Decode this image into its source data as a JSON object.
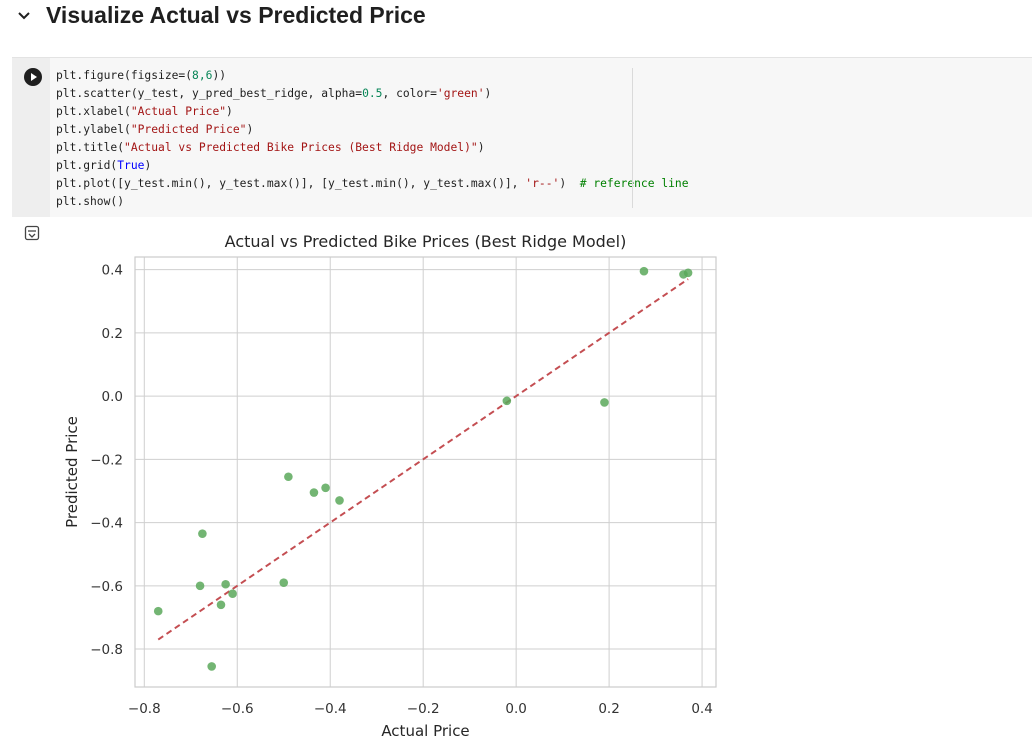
{
  "section": {
    "title": "Visualize Actual vs Predicted Price",
    "collapse_icon": "chevron-down-icon"
  },
  "cell": {
    "run_icon": "play-icon",
    "output_icon": "output-toggle-icon",
    "code_lines": [
      "plt.figure(figsize=(8,6))",
      "plt.scatter(y_test, y_pred_best_ridge, alpha=0.5, color='green')",
      "plt.xlabel(\"Actual Price\")",
      "plt.ylabel(\"Predicted Price\")",
      "plt.title(\"Actual vs Predicted Bike Prices (Best Ridge Model)\")",
      "plt.grid(True)",
      "plt.plot([y_test.min(), y_test.max()], [y_test.min(), y_test.max()], 'r--')  # reference line",
      "plt.show()"
    ]
  },
  "colors": {
    "points": "#5aa85a",
    "reference_line": "#c44e52",
    "grid": "#cfcfcf",
    "axis": "#cccccc"
  },
  "chart_data": {
    "type": "scatter",
    "title": "Actual vs Predicted Bike Prices (Best Ridge Model)",
    "xlabel": "Actual Price",
    "ylabel": "Predicted Price",
    "xlim": [
      -0.82,
      0.43
    ],
    "ylim": [
      -0.92,
      0.44
    ],
    "xticks": [
      -0.8,
      -0.6,
      -0.4,
      -0.2,
      0.0,
      0.2,
      0.4
    ],
    "yticks": [
      -0.8,
      -0.6,
      -0.4,
      -0.2,
      0.0,
      0.2,
      0.4
    ],
    "xtick_labels": [
      "−0.8",
      "−0.6",
      "−0.4",
      "−0.2",
      "0.0",
      "0.2",
      "0.4"
    ],
    "ytick_labels": [
      "−0.8",
      "−0.6",
      "−0.4",
      "−0.2",
      "0.0",
      "0.2",
      "0.4"
    ],
    "grid": true,
    "points": [
      {
        "x": -0.77,
        "y": -0.68
      },
      {
        "x": -0.68,
        "y": -0.6
      },
      {
        "x": -0.675,
        "y": -0.435
      },
      {
        "x": -0.655,
        "y": -0.855
      },
      {
        "x": -0.635,
        "y": -0.66
      },
      {
        "x": -0.625,
        "y": -0.595
      },
      {
        "x": -0.61,
        "y": -0.625
      },
      {
        "x": -0.5,
        "y": -0.59
      },
      {
        "x": -0.49,
        "y": -0.255
      },
      {
        "x": -0.435,
        "y": -0.305
      },
      {
        "x": -0.41,
        "y": -0.29
      },
      {
        "x": -0.38,
        "y": -0.33
      },
      {
        "x": -0.02,
        "y": -0.015
      },
      {
        "x": 0.19,
        "y": -0.02
      },
      {
        "x": 0.275,
        "y": 0.395
      },
      {
        "x": 0.36,
        "y": 0.385
      },
      {
        "x": 0.37,
        "y": 0.39
      }
    ],
    "reference_line": {
      "x": [
        -0.77,
        0.37
      ],
      "y": [
        -0.77,
        0.37
      ],
      "style": "dashed"
    }
  }
}
